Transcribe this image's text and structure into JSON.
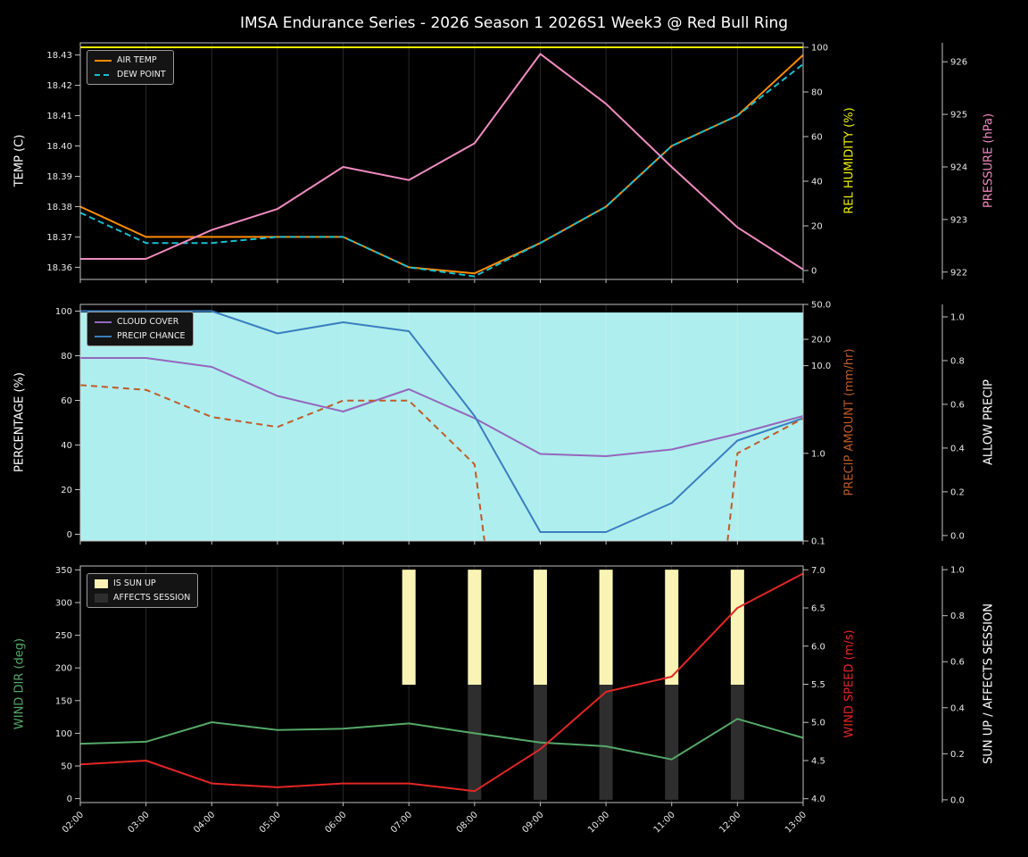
{
  "title": "IMSA Endurance Series - 2026 Season 1 2026S1 Week3 @ Red Bull Ring",
  "colors": {
    "background": "#000000",
    "text": "#ffffff",
    "spine": "#c0c0c0",
    "grid": "rgba(255,255,255,0.16)",
    "tick_text": "#e8e8e8"
  },
  "chart_data": [
    {
      "type": "line",
      "name": "temperature-panel",
      "x": [
        2,
        3,
        4,
        5,
        6,
        7,
        8,
        9,
        10,
        11,
        12,
        13
      ],
      "x_labels": [
        "02:00",
        "03:00",
        "04:00",
        "05:00",
        "06:00",
        "07:00",
        "08:00",
        "09:00",
        "10:00",
        "11:00",
        "12:00",
        "13:00"
      ],
      "grid": "vertical",
      "series": [
        {
          "name": "AIR TEMP",
          "data_name": "air-temp-line",
          "axis": "temp",
          "color": "#ff8c00",
          "values": [
            18.38,
            18.37,
            18.37,
            18.37,
            18.37,
            18.36,
            18.358,
            18.368,
            18.38,
            18.4,
            18.41,
            18.43
          ]
        },
        {
          "name": "DEW POINT",
          "data_name": "dew-point-line",
          "axis": "temp",
          "color": "#17becf",
          "dash": "7 4",
          "values": [
            18.378,
            18.368,
            18.368,
            18.37,
            18.37,
            18.36,
            18.357,
            18.368,
            18.38,
            18.4,
            18.41,
            18.427
          ]
        },
        {
          "name": "REL HUMIDITY",
          "data_name": "humidity-line",
          "axis": "humidity",
          "color": "#f0f000",
          "values": [
            100,
            100,
            100,
            100,
            100,
            100,
            100,
            100,
            100,
            100,
            100,
            100
          ]
        },
        {
          "name": "PRESSURE",
          "data_name": "pressure-line",
          "axis": "pressure",
          "color": "#f08bc0",
          "values": [
            922.25,
            922.25,
            922.8,
            923.2,
            924.0,
            923.75,
            924.45,
            926.15,
            925.2,
            924.0,
            922.85,
            922.05
          ]
        }
      ],
      "axes": {
        "temp": {
          "side": "left",
          "label": "TEMP (C)",
          "color": "#ffffff",
          "scale": "linear",
          "range": [
            18.356,
            18.434
          ],
          "ticks": [
            18.36,
            18.37,
            18.38,
            18.39,
            18.4,
            18.41,
            18.42,
            18.43
          ],
          "tick_labels": [
            "18.36",
            "18.37",
            "18.38",
            "18.39",
            "18.40",
            "18.41",
            "18.42",
            "18.43"
          ]
        },
        "humidity": {
          "side": "right1",
          "label": "REL HUMIDITY (%)",
          "color": "#f0f000",
          "scale": "linear",
          "range": [
            -4,
            102
          ],
          "ticks": [
            0,
            20,
            40,
            60,
            80,
            100
          ],
          "tick_labels": [
            "0",
            "20",
            "40",
            "60",
            "80",
            "100"
          ]
        },
        "pressure": {
          "side": "right2",
          "label": "PRESSURE (hPa)",
          "color": "#f08bc0",
          "scale": "linear",
          "range": [
            921.86,
            926.36
          ],
          "ticks": [
            922,
            923,
            924,
            925,
            926
          ],
          "tick_labels": [
            "922",
            "923",
            "924",
            "925",
            "926"
          ]
        }
      },
      "legend": {
        "position": "top-left",
        "items": [
          "AIR TEMP",
          "DEW POINT"
        ]
      }
    },
    {
      "type": "line",
      "name": "precipitation-panel",
      "series": [
        {
          "name": "CLOUD COVER",
          "data_name": "cloud-cover-line",
          "axis": "pct",
          "color": "#9467bd",
          "values": [
            79,
            79,
            75,
            62,
            55,
            65,
            52,
            36,
            35,
            38,
            45,
            53
          ]
        },
        {
          "name": "PRECIP CHANCE",
          "data_name": "precip-chance-line",
          "axis": "pct",
          "color": "#3a7ebf",
          "values": [
            100,
            100,
            100,
            90,
            95,
            91,
            53,
            1,
            1,
            14,
            42,
            52
          ]
        },
        {
          "name": "PRECIP AMOUNT",
          "data_name": "precip-amount-line",
          "axis": "precip",
          "color": "#bf5b28",
          "dash": "7 5",
          "segments": [
            [
              [
                2,
                6.0
              ],
              [
                3,
                5.3
              ],
              [
                4,
                2.6
              ],
              [
                5,
                2.0
              ],
              [
                6,
                4.0
              ],
              [
                7,
                4.0
              ],
              [
                8,
                0.75
              ],
              [
                8.15,
                0.1
              ]
            ],
            [
              [
                11.85,
                0.1
              ],
              [
                12,
                1.0
              ],
              [
                13,
                2.5
              ]
            ]
          ]
        }
      ],
      "fill": {
        "name": "ALLOW PRECIP ON",
        "data_name": "allow-precip-region",
        "axis": "allow",
        "color": "#afeeee",
        "from": -0.025,
        "to": 1.02,
        "x_from": 2,
        "x_to": 13
      },
      "axes": {
        "pct": {
          "side": "left",
          "label": "PERCENTAGE (%)",
          "color": "#ffffff",
          "scale": "linear",
          "range": [
            -3,
            103
          ],
          "ticks": [
            0,
            20,
            40,
            60,
            80,
            100
          ],
          "tick_labels": [
            "0",
            "20",
            "40",
            "60",
            "80",
            "100"
          ]
        },
        "precip": {
          "side": "right1",
          "label": "PRECIP AMOUNT (mm/hr)",
          "color": "#bf5b28",
          "scale": "log",
          "range": [
            0.1,
            50
          ],
          "ticks": [
            50,
            20,
            10,
            1,
            0.1
          ],
          "tick_labels": [
            "50.0",
            "20.0",
            "10.0",
            "1.0",
            "0.1"
          ]
        },
        "allow": {
          "side": "right2",
          "label": "ALLOW PRECIP",
          "color": "#ffffff",
          "scale": "linear",
          "range": [
            -0.025,
            1.057
          ],
          "ticks": [
            1.0,
            0.8,
            0.6,
            0.4,
            0.2,
            0.0
          ],
          "tick_labels": [
            "1.0",
            "0.8",
            "0.6",
            "0.4",
            "0.2",
            "0.0"
          ]
        }
      },
      "legend": {
        "position": "top-left",
        "items": [
          "CLOUD COVER",
          "PRECIP CHANCE"
        ]
      }
    },
    {
      "type": "line+bar",
      "name": "wind-panel",
      "series": [
        {
          "name": "WIND DIR",
          "data_name": "wind-dir-line",
          "axis": "dir",
          "color": "#55a868",
          "values": [
            84,
            87,
            117,
            105,
            107,
            115,
            100,
            86,
            80,
            60,
            122,
            93
          ]
        },
        {
          "name": "WIND SPEED",
          "data_name": "wind-speed-line",
          "axis": "speed",
          "color": "#e32626",
          "values": [
            4.45,
            4.5,
            4.2,
            4.15,
            4.2,
            4.2,
            4.1,
            4.65,
            5.4,
            5.6,
            6.5,
            6.95
          ]
        }
      ],
      "bars": [
        {
          "name": "IS SUN UP",
          "data_name": "sun-up-bar",
          "axis": "sun",
          "color": "#f9f4b5",
          "hours": [
            7,
            8,
            9,
            10,
            11,
            12
          ],
          "from": 0.5,
          "to": 1.0
        },
        {
          "name": "AFFECTS SESSION",
          "data_name": "affects-session-bar",
          "axis": "sun",
          "color": "#2e2e2e",
          "hours": [
            8,
            9,
            10,
            11,
            12
          ],
          "from": 0.0,
          "to": 0.5
        }
      ],
      "axes": {
        "dir": {
          "side": "left",
          "label": "WIND DIR (deg)",
          "color": "#55a868",
          "scale": "linear",
          "range": [
            -6,
            356
          ],
          "ticks": [
            0,
            50,
            100,
            150,
            200,
            250,
            300,
            350
          ],
          "tick_labels": [
            "0",
            "50",
            "100",
            "150",
            "200",
            "250",
            "300",
            "350"
          ]
        },
        "speed": {
          "side": "right1",
          "label": "WIND SPEED (m/s)",
          "color": "#e32626",
          "scale": "linear",
          "range": [
            3.95,
            7.05
          ],
          "ticks": [
            4.0,
            4.5,
            5.0,
            5.5,
            6.0,
            6.5,
            7.0
          ],
          "tick_labels": [
            "4.0",
            "4.5",
            "5.0",
            "5.5",
            "6.0",
            "6.5",
            "7.0"
          ]
        },
        "sun": {
          "side": "right2",
          "label": "SUN UP / AFFECTS SESSION",
          "color": "#ffffff",
          "scale": "linear",
          "range": [
            -0.012,
            1.016
          ],
          "ticks": [
            0.0,
            0.2,
            0.4,
            0.6,
            0.8,
            1.0
          ],
          "tick_labels": [
            "0.0",
            "0.2",
            "0.4",
            "0.6",
            "0.8",
            "1.0"
          ]
        }
      },
      "legend": {
        "position": "top-left",
        "items": [
          "IS SUN UP",
          "AFFECTS SESSION"
        ]
      }
    }
  ]
}
